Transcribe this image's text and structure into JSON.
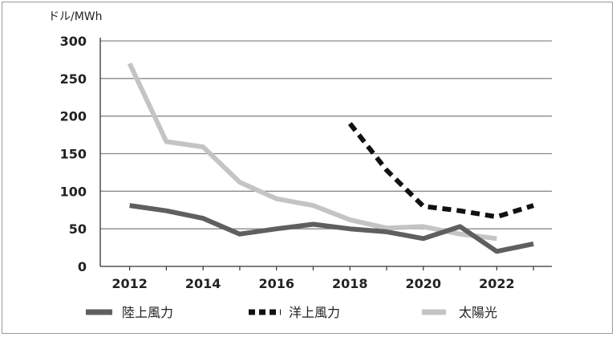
{
  "chart_data": {
    "type": "line",
    "ylabel": "ドル/MWh",
    "ylim": [
      0,
      300
    ],
    "yticks": [
      0,
      50,
      100,
      150,
      200,
      250,
      300
    ],
    "xlim": [
      2011.2,
      2023.5
    ],
    "xticks": [
      2012,
      2014,
      2016,
      2018,
      2020,
      2022
    ],
    "grid": true,
    "legend_position": "bottom",
    "series": [
      {
        "name": "陸上風力",
        "color": "#5f5f5f",
        "style": "solid",
        "x": [
          2012,
          2013,
          2014,
          2015,
          2016,
          2017,
          2018,
          2019,
          2020,
          2021,
          2022,
          2023
        ],
        "y": [
          81,
          74,
          64,
          43,
          50,
          56,
          50,
          46,
          37,
          53,
          20,
          30
        ]
      },
      {
        "name": "洋上風力",
        "color": "#111111",
        "style": "dashed",
        "x": [
          2018,
          2019,
          2020,
          2021,
          2022,
          2023
        ],
        "y": [
          190,
          128,
          80,
          74,
          66,
          81
        ]
      },
      {
        "name": "太陽光",
        "color": "#c4c4c4",
        "style": "solid",
        "x": [
          2012,
          2013,
          2014,
          2015,
          2016,
          2017,
          2018,
          2019,
          2020,
          2021,
          2022
        ],
        "y": [
          270,
          166,
          159,
          112,
          90,
          81,
          62,
          51,
          53,
          43,
          37
        ]
      }
    ]
  }
}
